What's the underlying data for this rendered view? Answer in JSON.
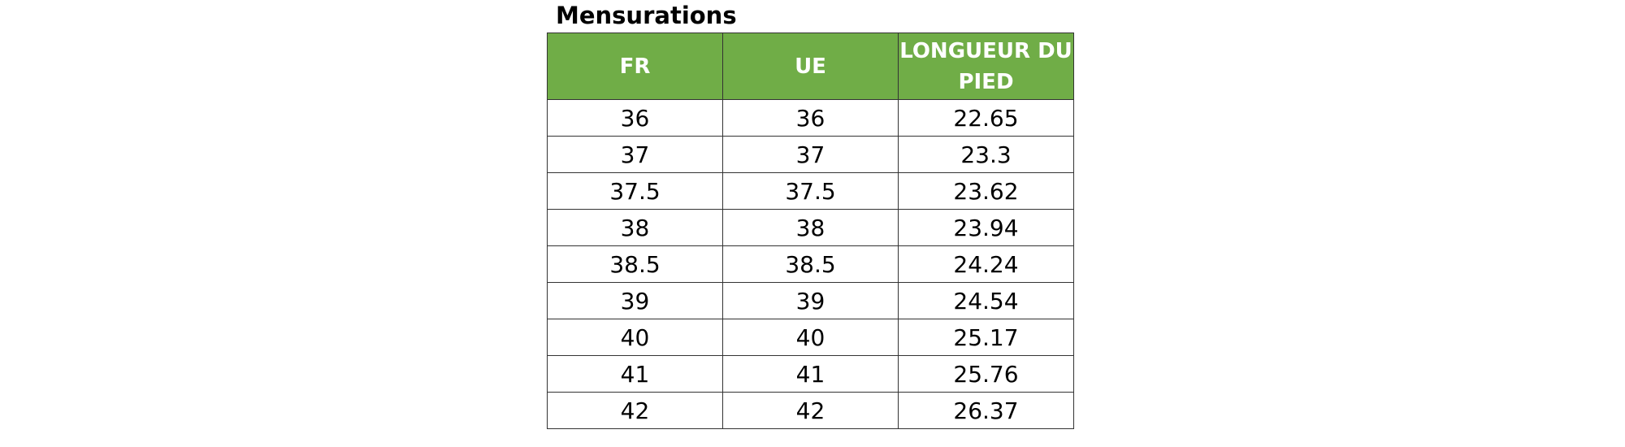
{
  "title": "Mensurations",
  "table": {
    "header": [
      "FR",
      "UE",
      "LONGUEUR DU PIED"
    ],
    "rows": [
      [
        "36",
        "36",
        "22.65"
      ],
      [
        "37",
        "37",
        "23.3"
      ],
      [
        "37.5",
        "37.5",
        "23.62"
      ],
      [
        "38",
        "38",
        "23.94"
      ],
      [
        "38.5",
        "38.5",
        "24.24"
      ],
      [
        "39",
        "39",
        "24.54"
      ],
      [
        "40",
        "40",
        "25.17"
      ],
      [
        "41",
        "41",
        "25.76"
      ],
      [
        "42",
        "42",
        "26.37"
      ]
    ]
  }
}
